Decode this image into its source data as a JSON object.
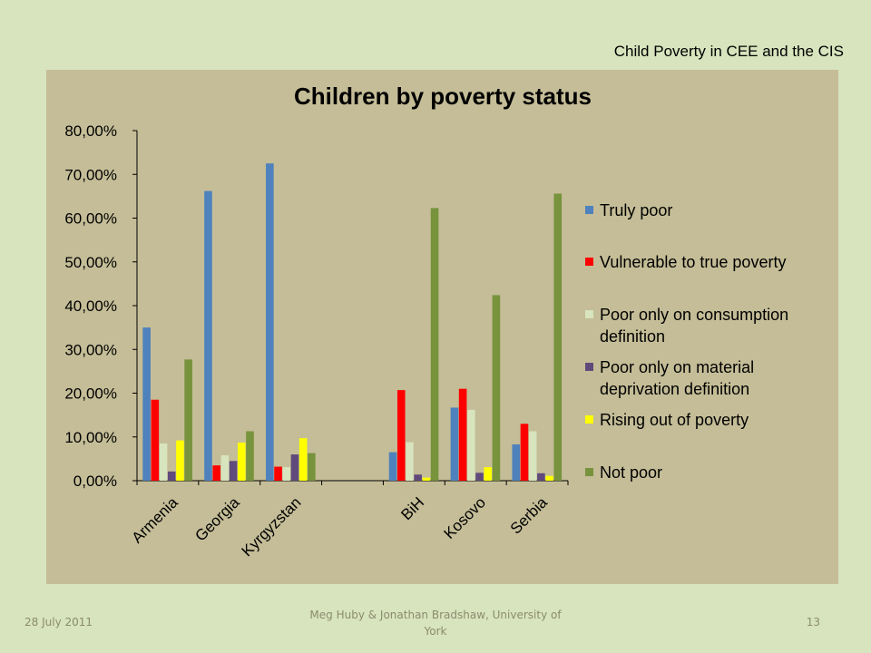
{
  "slide": {
    "header": "Child Poverty in CEE and the CIS",
    "footer_date": "28 July 2011",
    "footer_author": "Meg Huby & Jonathan Bradshaw, University of York",
    "page_number": "13"
  },
  "chart_data": {
    "type": "bar",
    "title": "Children by poverty status",
    "categories": [
      "Armenia",
      "Georgia",
      "Kyrgyzstan",
      "",
      "BiH",
      "Kosovo",
      "Serbia"
    ],
    "ylim": [
      0,
      80
    ],
    "yticks": [
      "0,00%",
      "10,00%",
      "20,00%",
      "30,00%",
      "40,00%",
      "50,00%",
      "60,00%",
      "70,00%",
      "80,00%"
    ],
    "grid": false,
    "legend_position": "right",
    "series": [
      {
        "name": "Truly poor",
        "color": "#4f81bd",
        "values": [
          35,
          66.2,
          72.5,
          null,
          6.5,
          16.7,
          8.3
        ]
      },
      {
        "name": "Vulnerable to true poverty",
        "color": "#ff0000",
        "values": [
          18.5,
          3.5,
          3.2,
          null,
          20.7,
          21,
          13
        ]
      },
      {
        "name": "Poor only on consumption definition",
        "color": "#d7e4bd",
        "values": [
          8.5,
          5.8,
          3.1,
          null,
          8.8,
          16.2,
          11.3
        ]
      },
      {
        "name": "Poor only on material deprivation definition",
        "color": "#604a7b",
        "values": [
          2.1,
          4.5,
          6,
          null,
          1.4,
          1.8,
          1.7
        ]
      },
      {
        "name": "Rising out of poverty",
        "color": "#ffff00",
        "values": [
          9.2,
          8.7,
          9.7,
          null,
          0.7,
          3.1,
          1.1
        ]
      },
      {
        "name": "Not poor",
        "color": "#77933c",
        "values": [
          27.7,
          11.3,
          6.3,
          null,
          62.3,
          42.4,
          65.6
        ]
      }
    ]
  }
}
